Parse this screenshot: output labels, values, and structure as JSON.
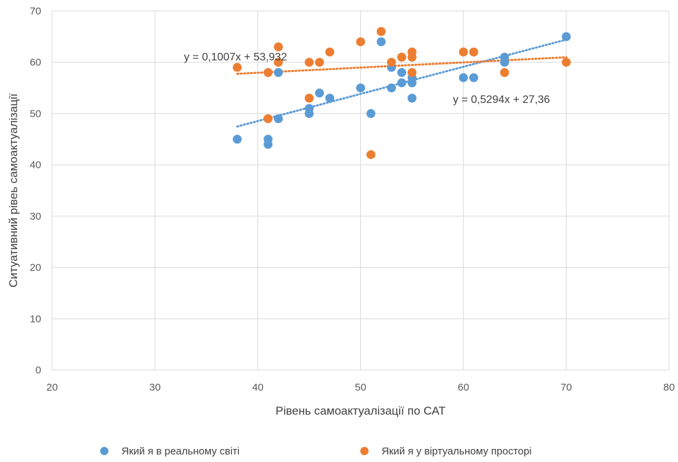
{
  "chart_data": {
    "type": "scatter",
    "xlabel": "Рівень самоактуалізації по САТ",
    "ylabel": "Ситуативний рівеь самоактуалізації",
    "xlim": [
      20,
      80
    ],
    "ylim": [
      0,
      70
    ],
    "xticks": [
      "20",
      "30",
      "40",
      "50",
      "60",
      "70",
      "80"
    ],
    "yticks": [
      "0",
      "10",
      "20",
      "30",
      "40",
      "50",
      "60",
      "70"
    ],
    "grid": true,
    "legend_position": "bottom",
    "series": [
      {
        "name": "Який я в реальному світі",
        "color": "#5B9BD5",
        "points": [
          [
            38,
            45
          ],
          [
            41,
            45
          ],
          [
            41,
            44
          ],
          [
            42,
            58
          ],
          [
            42,
            49
          ],
          [
            45,
            51
          ],
          [
            45,
            50
          ],
          [
            46,
            54
          ],
          [
            47,
            53
          ],
          [
            50,
            55
          ],
          [
            51,
            50
          ],
          [
            52,
            64
          ],
          [
            53,
            59
          ],
          [
            53,
            55
          ],
          [
            54,
            58
          ],
          [
            54,
            56
          ],
          [
            55,
            57
          ],
          [
            55,
            56
          ],
          [
            55,
            53
          ],
          [
            60,
            57
          ],
          [
            61,
            57
          ],
          [
            64,
            61
          ],
          [
            64,
            60
          ],
          [
            70,
            65
          ]
        ],
        "trendline": {
          "slope": 0.5294,
          "intercept": 27.36,
          "x_range": [
            38,
            70
          ],
          "equation": "y = 0,5294x + 27,36"
        }
      },
      {
        "name": "Який я у віртуальному просторі",
        "color": "#ED7D31",
        "points": [
          [
            38,
            59
          ],
          [
            41,
            58
          ],
          [
            41,
            49
          ],
          [
            42,
            63
          ],
          [
            42,
            60
          ],
          [
            45,
            60
          ],
          [
            45,
            53
          ],
          [
            46,
            60
          ],
          [
            47,
            62
          ],
          [
            50,
            64
          ],
          [
            51,
            42
          ],
          [
            52,
            66
          ],
          [
            53,
            60
          ],
          [
            54,
            61
          ],
          [
            55,
            62
          ],
          [
            55,
            61
          ],
          [
            55,
            58
          ],
          [
            60,
            62
          ],
          [
            61,
            62
          ],
          [
            64,
            58
          ],
          [
            70,
            60
          ]
        ],
        "trendline": {
          "slope": 0.1007,
          "intercept": 53.932,
          "x_range": [
            38,
            70
          ],
          "equation": "y = 0,1007x + 53,932"
        }
      }
    ]
  }
}
